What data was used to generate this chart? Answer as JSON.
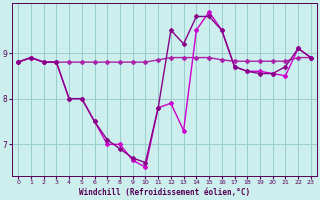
{
  "hours": [
    0,
    1,
    2,
    3,
    4,
    5,
    6,
    7,
    8,
    9,
    10,
    11,
    12,
    13,
    14,
    15,
    16,
    17,
    18,
    19,
    20,
    21,
    22,
    23
  ],
  "line1": [
    8.8,
    8.9,
    8.8,
    8.8,
    8.8,
    8.8,
    8.8,
    8.8,
    8.8,
    8.8,
    8.8,
    8.85,
    8.9,
    8.9,
    8.9,
    8.9,
    8.85,
    8.82,
    8.82,
    8.82,
    8.82,
    8.82,
    8.9,
    8.9
  ],
  "line2": [
    8.8,
    8.9,
    8.8,
    8.8,
    8.0,
    8.0,
    7.5,
    7.0,
    7.0,
    6.65,
    6.5,
    7.8,
    7.9,
    7.3,
    9.5,
    9.9,
    9.5,
    8.7,
    8.6,
    8.6,
    8.55,
    8.5,
    9.1,
    8.9
  ],
  "line3": [
    8.8,
    8.9,
    8.8,
    8.8,
    8.0,
    8.0,
    7.5,
    7.1,
    6.9,
    6.7,
    6.6,
    7.8,
    9.5,
    9.2,
    9.8,
    9.8,
    9.5,
    8.7,
    8.6,
    8.55,
    8.55,
    8.7,
    9.1,
    8.9
  ],
  "bg_color": "#cceeed",
  "line_color1": "#aa22aa",
  "line_color2": "#cc00cc",
  "line_color3": "#880088",
  "grid_color": "#99cccc",
  "xlabel": "Windchill (Refroidissement éolien,°C)",
  "xlabel_color": "#550055",
  "tick_color": "#550055",
  "ylabel_ticks": [
    7,
    8,
    9
  ],
  "ylim": [
    6.3,
    10.1
  ],
  "xlim": [
    -0.5,
    23.5
  ]
}
